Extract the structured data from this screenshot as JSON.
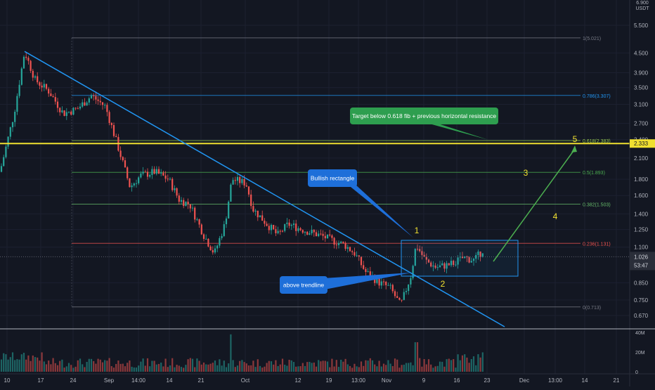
{
  "chart_data": {
    "type": "candlestick",
    "scale": "log",
    "unit": "USDT",
    "price_axis": {
      "top_label": "6.900",
      "ticks": [
        "5.500",
        "4.500",
        "3.900",
        "3.500",
        "3.100",
        "2.700",
        "2.400",
        "2.100",
        "1.800",
        "1.600",
        "1.400",
        "1.250",
        "1.100",
        "0.850",
        "0.750",
        "0.670"
      ],
      "current_price_tag": "1.026",
      "countdown_tag": "53:47",
      "level_tag": "2.333"
    },
    "time_axis": {
      "ticks": [
        "10",
        "17",
        "24",
        "Sep",
        "14:00",
        "14",
        "21",
        "Oct",
        "12",
        "19",
        "13:00",
        "Nov",
        "9",
        "16",
        "23",
        "Dec",
        "13:00",
        "14",
        "21"
      ]
    },
    "volume_axis": {
      "ticks": [
        "40M",
        "20M",
        "0"
      ]
    },
    "fibonacci": [
      {
        "label": "1(5.021)",
        "price": 5.021,
        "color": "#787b86"
      },
      {
        "label": "0.786(3.307)",
        "price": 3.307,
        "color": "#2196f3"
      },
      {
        "label": "0.618(2.383)",
        "price": 2.383,
        "color": "#9ad04d"
      },
      {
        "label": "0.5(1.893)",
        "price": 1.893,
        "color": "#4caf50"
      },
      {
        "label": "0.382(1.503)",
        "price": 1.503,
        "color": "#66bb6a"
      },
      {
        "label": "0.236(1.131)",
        "price": 1.131,
        "color": "#ef5350"
      },
      {
        "label": "0(0.713)",
        "price": 0.713,
        "color": "#787b86"
      }
    ],
    "horizontal_resistance": {
      "price": 2.333,
      "color": "#f0e030"
    },
    "candles_summary": {
      "start_price": 1.9,
      "peak_price": 4.6,
      "low_price": 0.72,
      "last_price": 1.026
    },
    "annotations": {
      "target_callout": "Target below 0.618 fib + previous horizontal resistance",
      "rectangle_callout": "Bullish rectangle",
      "trendline_callout": "above trendline",
      "wave_labels": [
        "1",
        "2",
        "3",
        "4",
        "5"
      ]
    },
    "colors": {
      "up": "#26a69a",
      "down": "#ef5350",
      "background": "#131722",
      "trendline": "#2196f3",
      "callout_blue": "#1e6fd9",
      "callout_green": "#2e9e4f",
      "projection": "#4caf50"
    }
  }
}
